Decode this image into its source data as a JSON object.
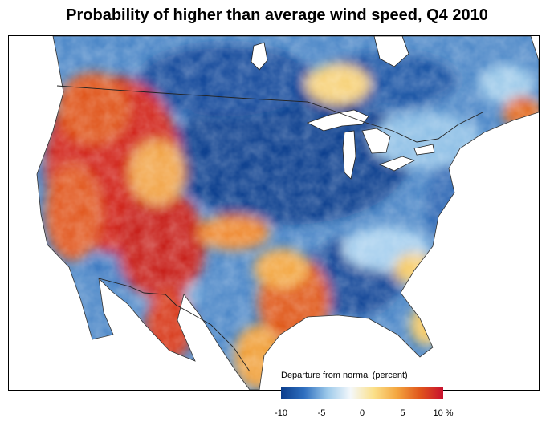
{
  "title": "Probability of higher than average wind speed, Q4 2010",
  "legend": {
    "title": "Departure from normal (percent)",
    "min": -10,
    "max": 10,
    "ticks": [
      {
        "value": -10,
        "label": "-10"
      },
      {
        "value": -5,
        "label": "-5"
      },
      {
        "value": 0,
        "label": "0"
      },
      {
        "value": 5,
        "label": "5"
      },
      {
        "value": 10,
        "label": "10 %"
      }
    ],
    "colors": [
      "#0b3d8c",
      "#2f6fbf",
      "#9cc9ea",
      "#f4f8fb",
      "#fbe08a",
      "#f4a640",
      "#e0561c",
      "#c8102e"
    ]
  }
}
